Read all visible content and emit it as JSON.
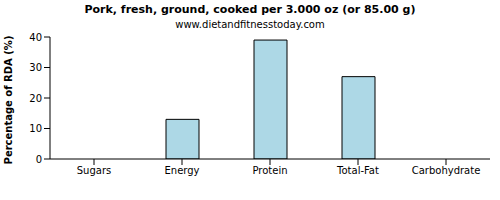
{
  "chart_data": {
    "type": "bar",
    "title": "Pork, fresh, ground, cooked per 3.000 oz (or 85.00 g)",
    "subtitle": "www.dietandfitnesstoday.com",
    "y_label": "Percentage of RDA (%)",
    "categories": [
      "Sugars",
      "Energy",
      "Protein",
      "Total-Fat",
      "Carbohydrate"
    ],
    "values": [
      0,
      13,
      39,
      27,
      0
    ],
    "color": "#add8e6",
    "ylim": [
      0,
      40
    ],
    "yticks": [
      0,
      10,
      20,
      30,
      40
    ],
    "grid": false
  }
}
